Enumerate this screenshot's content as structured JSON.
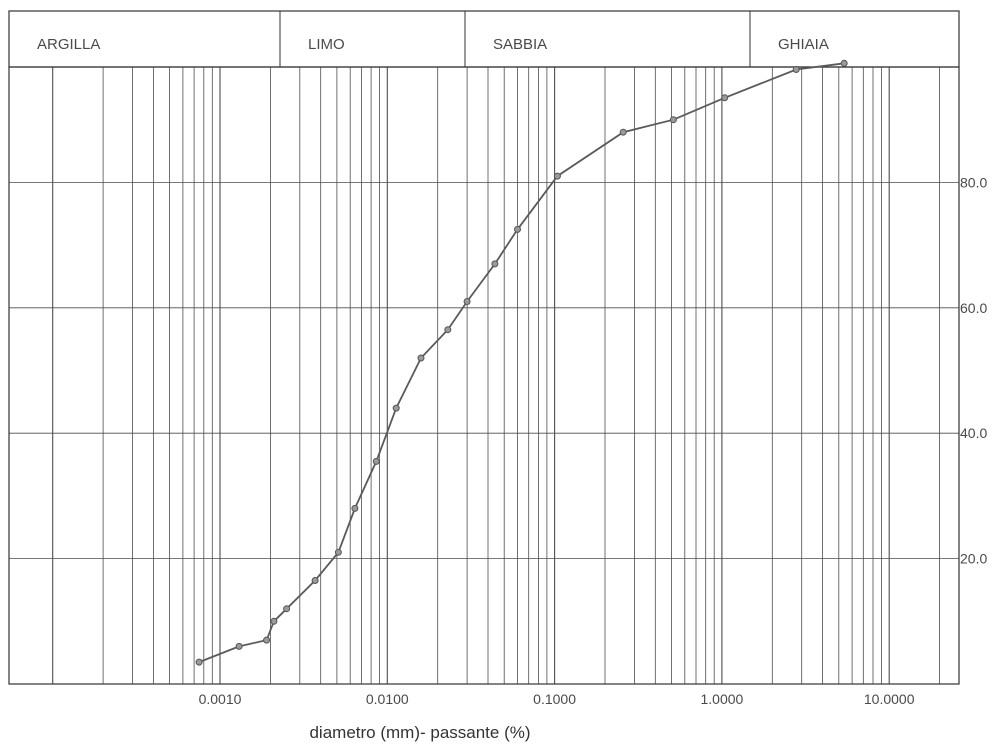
{
  "chart_data": {
    "type": "line",
    "title": "",
    "xlabel": "diametro (mm)- passante (%)",
    "ylabel": "",
    "x_scale": "log",
    "xlim": [
      0.0001,
      50
    ],
    "ylim": [
      0,
      100
    ],
    "grid": true,
    "legend": "none",
    "zones": [
      "ARGILLA",
      "LIMO",
      "SABBIA",
      "GHIAIA"
    ],
    "x_tick_labels": [
      "0.0010",
      "0.0100",
      "0.1000",
      "1.0000",
      "10.0000"
    ],
    "y_tick_labels": [
      "20.0",
      "40.0",
      "60.0",
      "80.0"
    ],
    "series": [
      {
        "x": [
          0.00075,
          0.0013,
          0.0019,
          0.0021,
          0.0025,
          0.0037,
          0.0051,
          0.0064,
          0.0086,
          0.0113,
          0.0159,
          0.023,
          0.03,
          0.044,
          0.06,
          0.104,
          0.257,
          0.513,
          1.04,
          2.78,
          5.38
        ],
        "y": [
          3.5,
          6.0,
          7.0,
          10.0,
          12.0,
          16.5,
          21.0,
          28.0,
          35.5,
          44.0,
          52.0,
          56.5,
          61.0,
          67.0,
          72.5,
          81.0,
          88.0,
          90.0,
          93.5,
          98.0,
          99.0
        ]
      }
    ]
  },
  "style": {
    "line_color": "#5a5a5a",
    "grid_color": "#4d4d4d",
    "frame_color": "#333333",
    "text_color": "#4a4a4a"
  }
}
